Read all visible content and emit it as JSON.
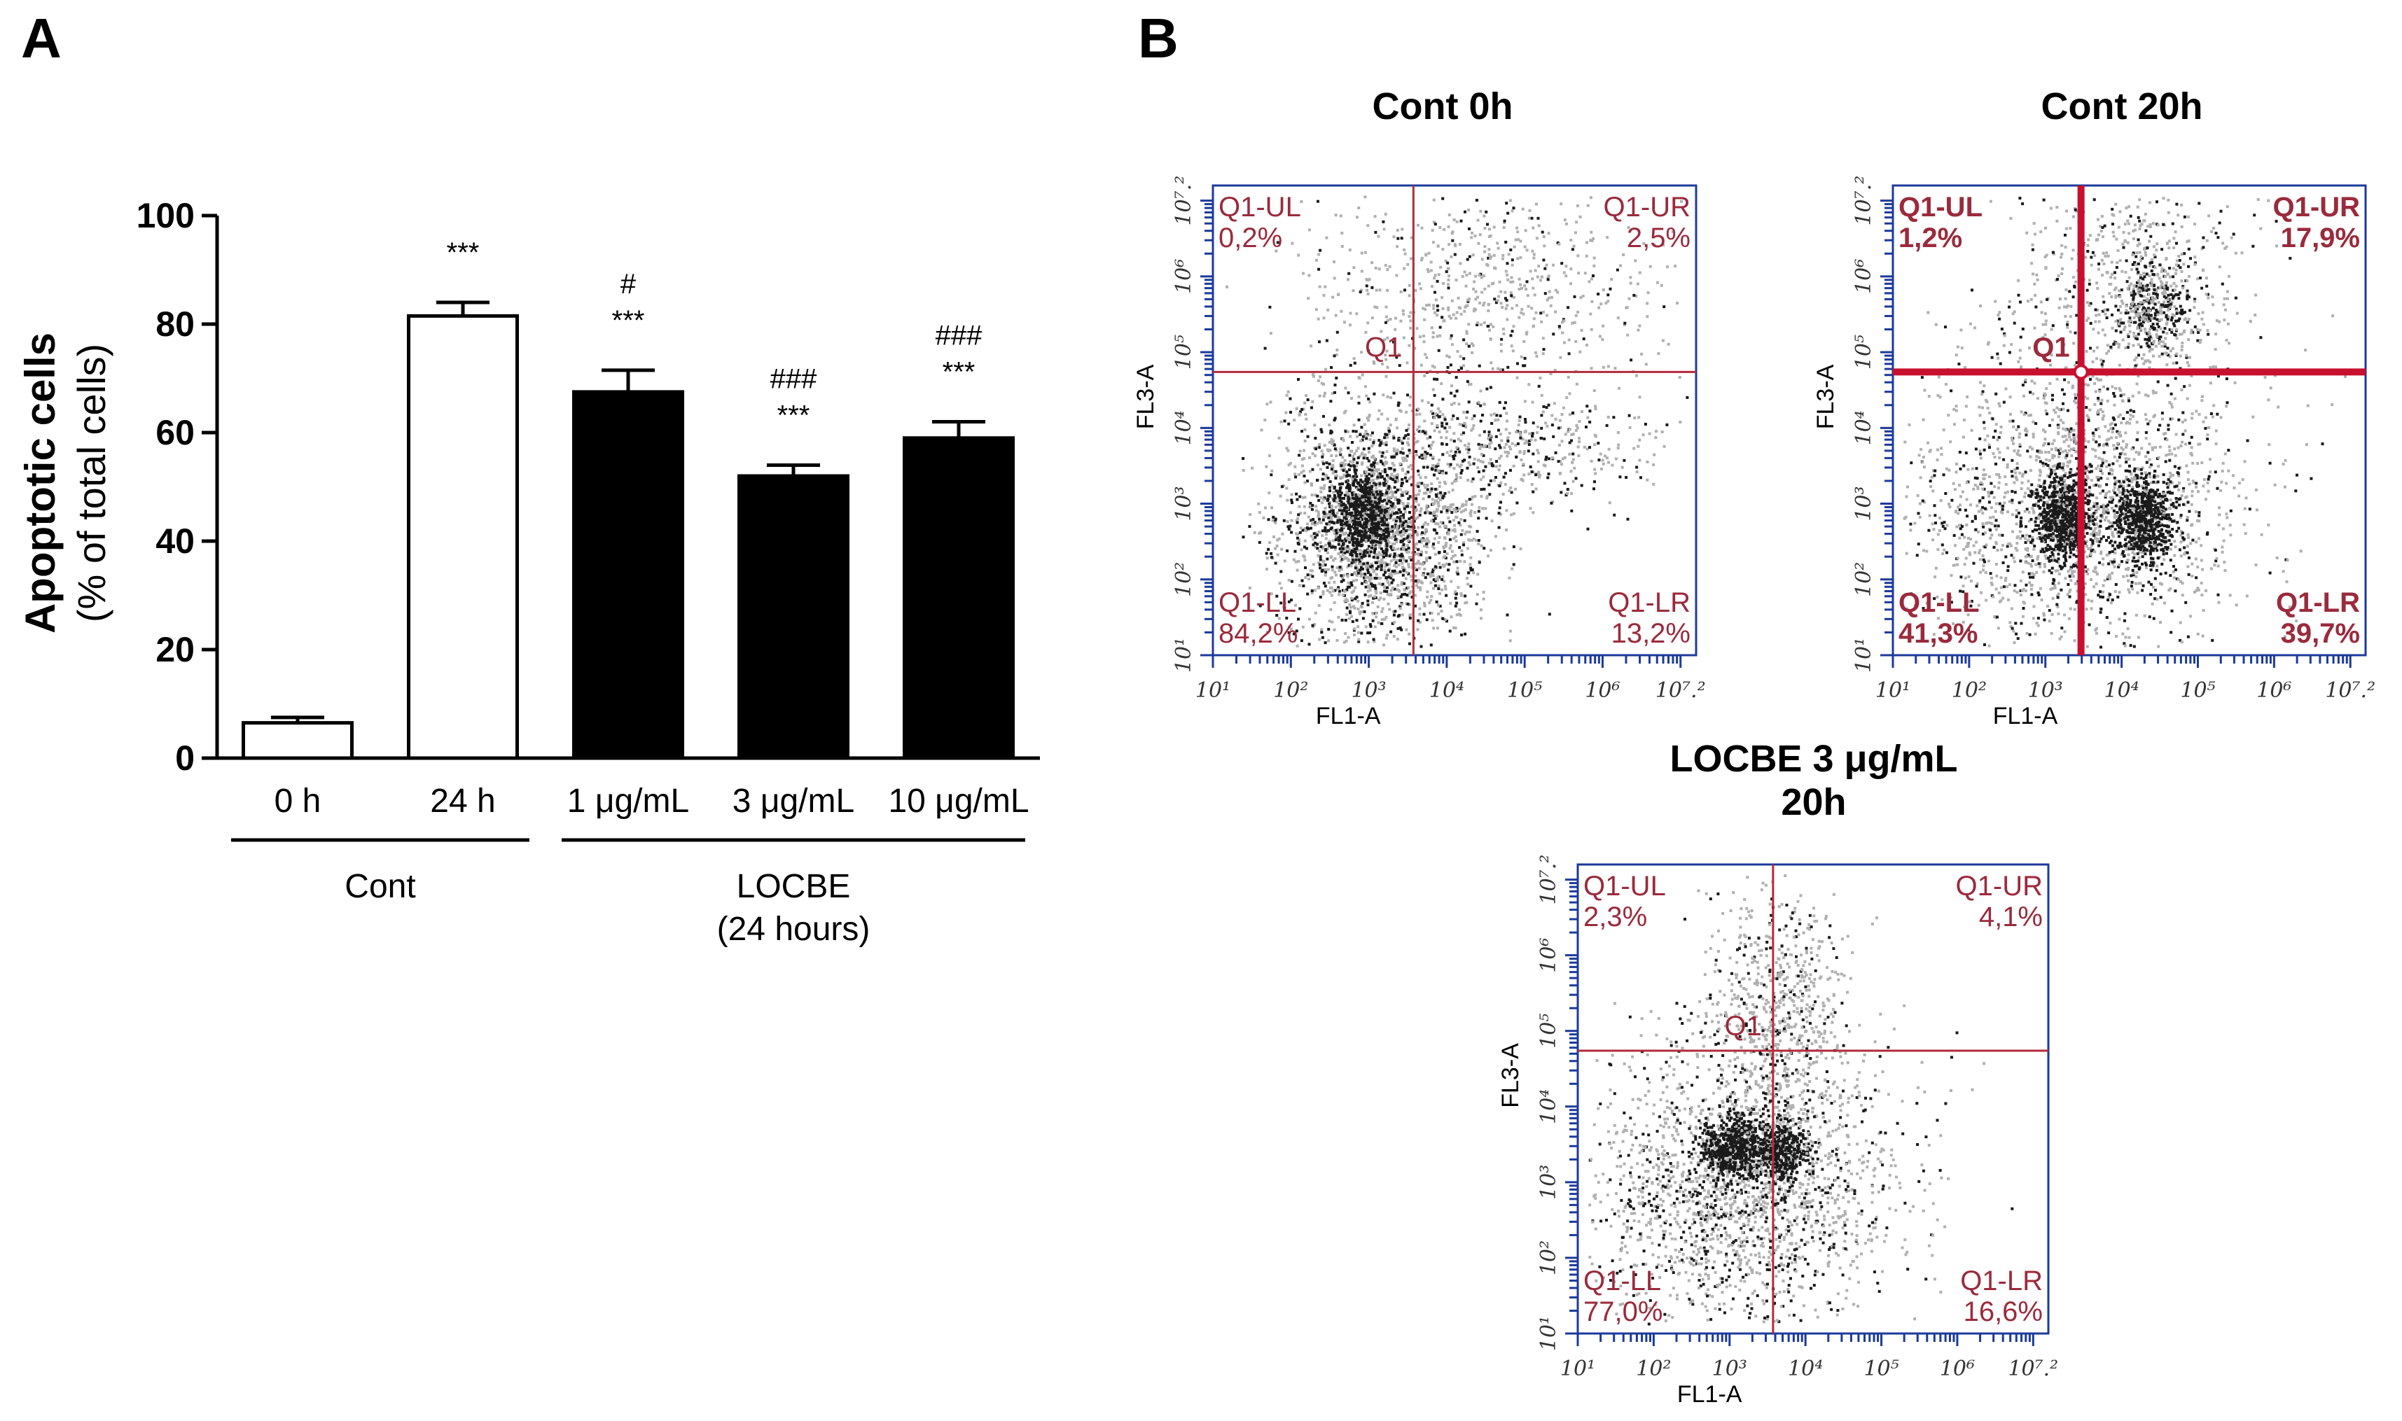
{
  "panel_a_label": "A",
  "panel_b_label": "B",
  "chart_data": [
    {
      "type": "bar",
      "panel": "A",
      "title": "",
      "ylabel": "Apoptotic cells",
      "ylabel_sub": "(% of total cells)",
      "ylim": [
        0,
        100
      ],
      "yticks": [
        "0",
        "20",
        "40",
        "60",
        "80",
        "100"
      ],
      "categories": [
        "0 h",
        "24 h",
        "1 μg/mL",
        "3 μg/mL",
        "10 μg/mL"
      ],
      "values": [
        6.5,
        81.5,
        67.5,
        52,
        59
      ],
      "errors": [
        1,
        2.5,
        4,
        2,
        3
      ],
      "fills": [
        "#ffffff",
        "#ffffff",
        "#000000",
        "#000000",
        "#000000"
      ],
      "annotations": [
        [],
        [
          "***"
        ],
        [
          "#",
          "***"
        ],
        [
          "###",
          "***"
        ],
        [
          "###",
          "***"
        ]
      ],
      "groups": [
        {
          "label": "Cont",
          "sub": "",
          "start": 0,
          "end": 1
        },
        {
          "label": "LOCBE",
          "sub": "(24 hours)",
          "start": 2,
          "end": 4
        }
      ]
    },
    {
      "type": "scatter",
      "panel": "B",
      "title": "Cont 0h",
      "xlabel": "FL1-A",
      "ylabel": "FL3-A",
      "gate_label": "Q1",
      "quadrants": {
        "UL": "0,2%",
        "UR": "2,5%",
        "LL": "84,2%",
        "LR": "13,2%"
      }
    },
    {
      "type": "scatter",
      "panel": "B",
      "title": "Cont 20h",
      "xlabel": "FL1-A",
      "ylabel": "FL3-A",
      "gate_label": "Q1",
      "quadrants": {
        "UL": "1,2%",
        "UR": "17,9%",
        "LL": "41,3%",
        "LR": "39,7%"
      }
    },
    {
      "type": "scatter",
      "panel": "B",
      "title": "LOCBE 3 μg/mL",
      "title_line2": "20h",
      "xlabel": "FL1-A",
      "ylabel": "FL3-A",
      "gate_label": "Q1",
      "quadrants": {
        "UL": "2,3%",
        "UR": "4,1%",
        "LL": "77,0%",
        "LR": "16,6%"
      }
    }
  ],
  "flow_axis": {
    "x_ticks": [
      "10¹",
      "10²",
      "10³",
      "10⁴",
      "10⁵",
      "10⁶",
      "10⁷.²"
    ],
    "y_ticks": [
      "10¹",
      "10²",
      "10³",
      "10⁴",
      "10⁵",
      "10⁶",
      "10⁷.²"
    ]
  },
  "quadrant_names": {
    "UL": "Q1-UL",
    "UR": "Q1-UR",
    "LL": "Q1-LL",
    "LR": "Q1-LR"
  },
  "colors": {
    "axis_blue": "#1c3a9b",
    "gate_red": "#b22b3c",
    "gate_red_bold": "#c8102e",
    "quad_text": "#9b2a3c",
    "dot": "#5a5a5a"
  }
}
